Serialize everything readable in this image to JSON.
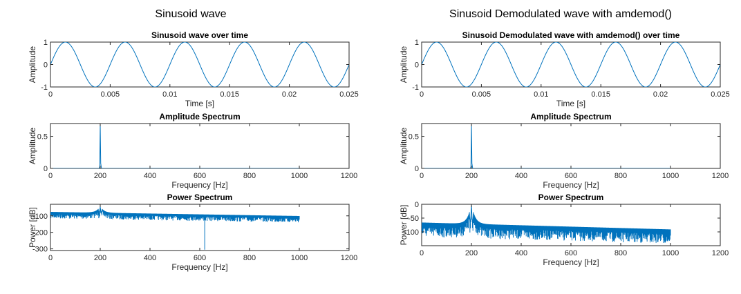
{
  "figure": {
    "columns": [
      {
        "title": "Sinusoid wave"
      },
      {
        "title": "Sinusoid Demodulated wave with amdemod()"
      }
    ]
  },
  "chart_data": [
    {
      "type": "line",
      "title": "Sinusoid wave over time",
      "xlabel": "Time [s]",
      "ylabel": "Amplitude",
      "xlim": [
        0,
        0.025
      ],
      "ylim": [
        -1,
        1
      ],
      "xticks": [
        0,
        0.005,
        0.01,
        0.015,
        0.02,
        0.025
      ],
      "xtick_labels": [
        "0",
        "0.005",
        "0.01",
        "0.015",
        "0.02",
        "0.025"
      ],
      "yticks": [
        -1,
        0,
        1
      ],
      "ytick_labels": [
        "-1",
        "0",
        "1"
      ],
      "series": [
        {
          "function": "sine",
          "frequency_hz": 200,
          "amplitude": 1,
          "x_range": [
            0,
            0.025
          ]
        }
      ]
    },
    {
      "type": "line",
      "title": "Amplitude Spectrum",
      "xlabel": "Frequency [Hz]",
      "ylabel": "Amplitude",
      "xlim": [
        0,
        1200
      ],
      "ylim": [
        0,
        0.7
      ],
      "xticks": [
        0,
        200,
        400,
        600,
        800,
        1000,
        1200
      ],
      "xtick_labels": [
        "0",
        "200",
        "400",
        "600",
        "800",
        "1000",
        "1200"
      ],
      "yticks": [
        0,
        0.5
      ],
      "ytick_labels": [
        "0",
        "0.5"
      ],
      "series": [
        {
          "x": [
            0,
            195,
            198,
            200,
            202,
            205,
            1000
          ],
          "y": [
            0,
            0,
            0.02,
            0.7,
            0.08,
            0,
            0
          ]
        }
      ]
    },
    {
      "type": "line",
      "title": "Power Spectrum",
      "xlabel": "Frequency [Hz]",
      "ylabel": "Power [dB]",
      "xlim": [
        0,
        1200
      ],
      "ylim": [
        -310,
        -30
      ],
      "xticks": [
        0,
        200,
        400,
        600,
        800,
        1000,
        1200
      ],
      "xtick_labels": [
        "0",
        "200",
        "400",
        "600",
        "800",
        "1000",
        "1200"
      ],
      "yticks": [
        -300,
        -200,
        -100
      ],
      "ytick_labels": [
        "-300",
        "-200",
        "-100"
      ],
      "series": [
        {
          "kind": "noisy-spectrum",
          "peak_x": 200,
          "peak_y": -45,
          "floor_start": -80,
          "floor_end": -105,
          "x_end": 1000,
          "dip_x": 620,
          "dip_y": -305
        }
      ]
    },
    {
      "type": "line",
      "title": "Sinusoid Demodulated wave with amdemod() over time",
      "xlabel": "Time [s]",
      "ylabel": "Amplitude",
      "xlim": [
        0,
        0.025
      ],
      "ylim": [
        -1,
        1
      ],
      "xticks": [
        0,
        0.005,
        0.01,
        0.015,
        0.02,
        0.025
      ],
      "xtick_labels": [
        "0",
        "0.005",
        "0.01",
        "0.015",
        "0.02",
        "0.025"
      ],
      "yticks": [
        -1,
        0,
        1
      ],
      "ytick_labels": [
        "-1",
        "0",
        "1"
      ],
      "series": [
        {
          "function": "sine",
          "frequency_hz": 200,
          "amplitude": 1,
          "x_range": [
            0,
            0.025
          ]
        }
      ]
    },
    {
      "type": "line",
      "title": "Amplitude Spectrum",
      "xlabel": "Frequency [Hz]",
      "ylabel": "Amplitude",
      "xlim": [
        0,
        1200
      ],
      "ylim": [
        0,
        0.7
      ],
      "xticks": [
        0,
        200,
        400,
        600,
        800,
        1000,
        1200
      ],
      "xtick_labels": [
        "0",
        "200",
        "400",
        "600",
        "800",
        "1000",
        "1200"
      ],
      "yticks": [
        0,
        0.5
      ],
      "ytick_labels": [
        "0",
        "0.5"
      ],
      "series": [
        {
          "x": [
            0,
            195,
            198,
            200,
            202,
            205,
            1000
          ],
          "y": [
            0,
            0,
            0.02,
            0.7,
            0.08,
            0,
            0
          ]
        }
      ]
    },
    {
      "type": "line",
      "title": "Power Spectrum",
      "xlabel": "Frequency [Hz]",
      "ylabel": "Power [dB]",
      "xlim": [
        0,
        1200
      ],
      "ylim": [
        -150,
        0
      ],
      "xticks": [
        0,
        200,
        400,
        600,
        800,
        1000,
        1200
      ],
      "xtick_labels": [
        "0",
        "200",
        "400",
        "600",
        "800",
        "1000",
        "1200"
      ],
      "yticks": [
        -100,
        -50,
        0
      ],
      "ytick_labels": [
        "-100",
        "-50",
        "0"
      ],
      "series": [
        {
          "kind": "noisy-spectrum",
          "peak_x": 200,
          "peak_y": 0,
          "floor_start": -70,
          "floor_end": -95,
          "x_end": 1000,
          "spread": 40
        }
      ]
    }
  ]
}
